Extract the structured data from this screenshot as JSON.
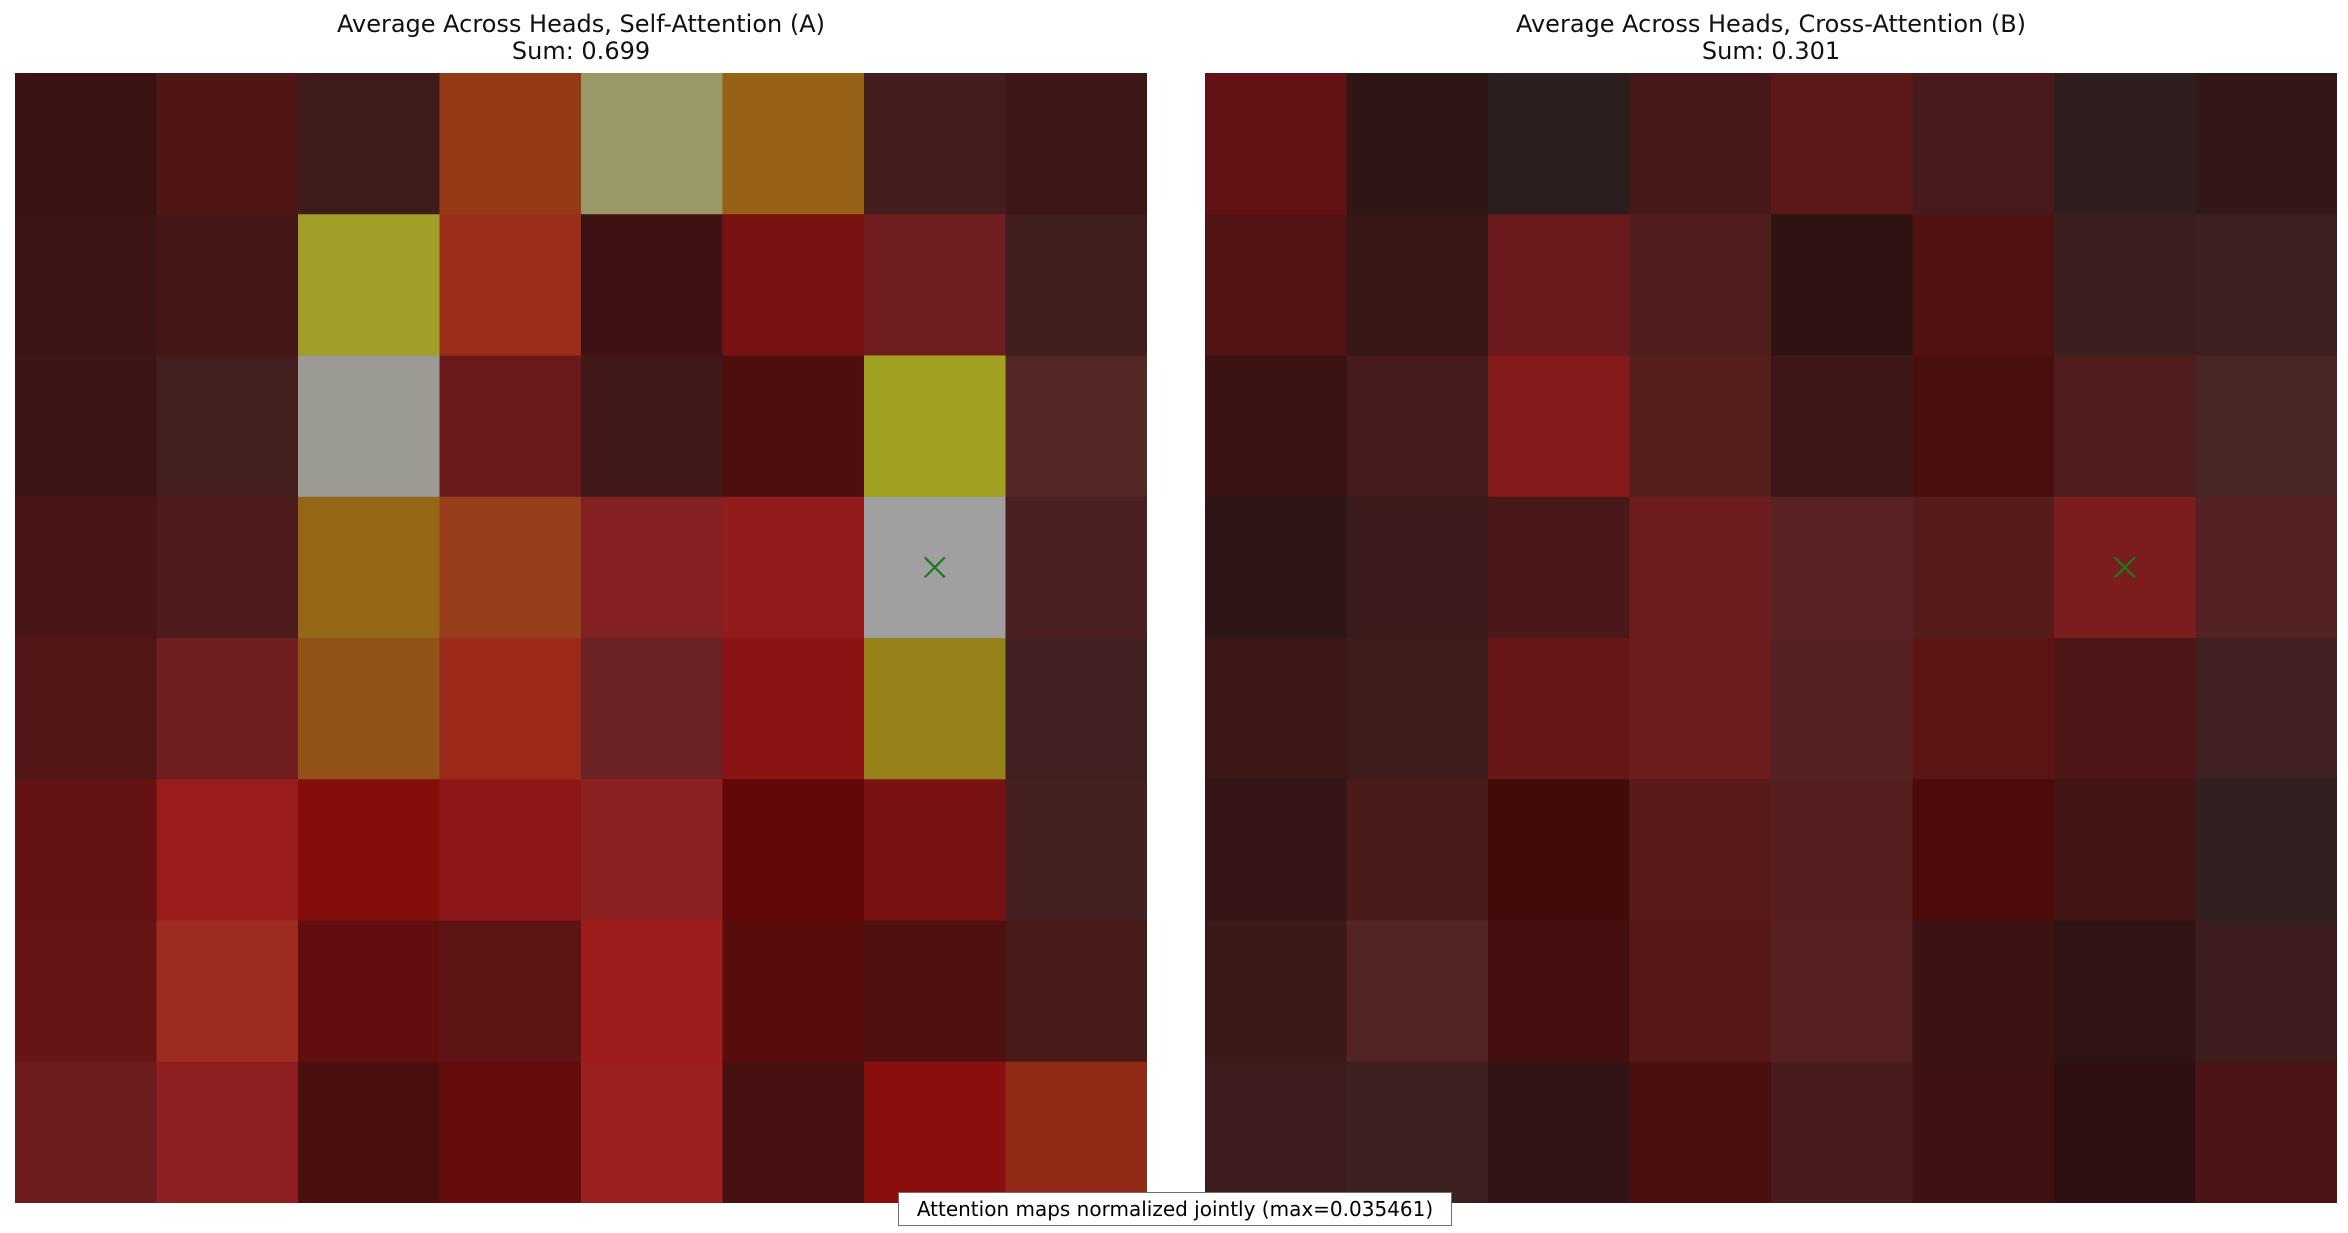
{
  "chart_data": [
    {
      "type": "heatmap",
      "title": "Average Across Heads, Self-Attention (A)",
      "subtitle": "Sum: 0.699",
      "grid": [
        8,
        8
      ],
      "marker_cell": [
        3,
        6
      ],
      "colors": [
        [
          "#3a1212",
          "#501515",
          "#3f1c1c",
          "#943b16",
          "#9a9866",
          "#976118",
          "#441e1e",
          "#3e1616"
        ],
        [
          "#3c1414",
          "#461616",
          "#a19e27",
          "#9c2d1b",
          "#3e1212",
          "#7a1111",
          "#701e21",
          "#411e1e"
        ],
        [
          "#3c1616",
          "#431f1f",
          "#9b9b93",
          "#6a1a1a",
          "#401818",
          "#4d0e0e",
          "#a1a121",
          "#552626"
        ],
        [
          "#491414",
          "#4d1b1b",
          "#976718",
          "#973e1c",
          "#822023",
          "#921b1b",
          "#a0a0a0",
          "#4a2020"
        ],
        [
          "#521616",
          "#701e20",
          "#935318",
          "#9b2a1b",
          "#6a2225",
          "#8a1313",
          "#978319",
          "#402020"
        ],
        [
          "#651212",
          "#9b1d1b",
          "#850e0a",
          "#8c1717",
          "#8c2020",
          "#620808",
          "#7a1212",
          "#452020"
        ],
        [
          "#661414",
          "#9c2c20",
          "#620e0e",
          "#5e1414",
          "#9d1c1c",
          "#580c0c",
          "#501010",
          "#481a1a"
        ],
        [
          "#6c1c1c",
          "#8d1f23",
          "#4a1010",
          "#640b0c",
          "#9c2020",
          "#471010",
          "#8b0e0e",
          "#912a14"
        ]
      ]
    },
    {
      "type": "heatmap",
      "title": "Average Across Heads, Cross-Attention (B)",
      "subtitle": "Sum: 0.301",
      "grid": [
        8,
        8
      ],
      "marker_cell": [
        3,
        6
      ],
      "colors": [
        [
          "#621215",
          "#2f1616",
          "#2c1e1e",
          "#471818",
          "#5c1819",
          "#471a1b",
          "#2e1e1e",
          "#331616"
        ],
        [
          "#521315",
          "#391616",
          "#6a1a1d",
          "#511e1e",
          "#2f1313",
          "#521212",
          "#3c1e1e",
          "#3c2020"
        ],
        [
          "#3c1313",
          "#451b1d",
          "#851a1a",
          "#571e1e",
          "#3e1818",
          "#490e0e",
          "#501c1c",
          "#482626"
        ],
        [
          "#2e1616",
          "#3a1a1a",
          "#4a1818",
          "#6c1c1e",
          "#5a2222",
          "#561c1c",
          "#7b1d1e",
          "#542222"
        ],
        [
          "#3d1616",
          "#3f1c1c",
          "#661617",
          "#6e1c1e",
          "#542222",
          "#5c1414",
          "#4e1616",
          "#402020"
        ],
        [
          "#351515",
          "#4b1b1b",
          "#430a0a",
          "#581a1a",
          "#561e1e",
          "#4d0a0a",
          "#431414",
          "#302020"
        ],
        [
          "#3d1818",
          "#542424",
          "#460f0f",
          "#581818",
          "#562020",
          "#3d1212",
          "#2f1414",
          "#3c1c1c"
        ],
        [
          "#3c1c1c",
          "#3c2020",
          "#321414",
          "#4a0f0f",
          "#481c1c",
          "#3e1212",
          "#2e1010",
          "#4c1414"
        ]
      ]
    }
  ],
  "caption": "Attention maps normalized jointly (max=0.035461)",
  "marker_color": "#1b7a1b"
}
